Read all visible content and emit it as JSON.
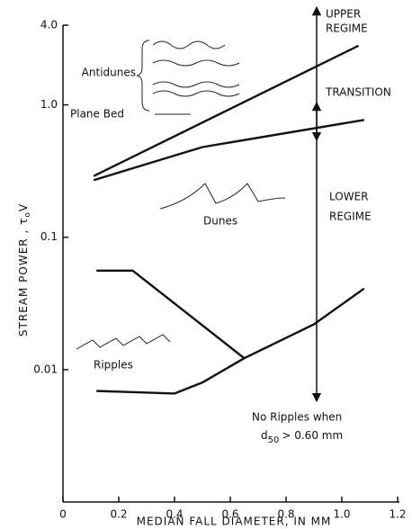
{
  "chart_data": {
    "type": "line",
    "xlabel": "MEDIAN FALL DIAMETER, IN MM",
    "ylabel": [
      "STREAM POWER , τ",
      "o",
      "V"
    ],
    "log_y": true,
    "xlim": [
      0,
      1.2
    ],
    "xticks": [
      0,
      0.2,
      0.4,
      0.6,
      0.8,
      {
        "value": 1.0,
        "label": "1.0"
      },
      1.2
    ],
    "ylim": [
      0.001,
      4
    ],
    "yticks": [
      0.01,
      0.1,
      {
        "value": 1.0,
        "label": "1.0"
      },
      {
        "value": 4.0,
        "label": "4.0"
      }
    ],
    "series": [
      {
        "color": "#111111",
        "x": [
          0.11,
          1.06
        ],
        "values": [
          0.29,
          2.8
        ]
      },
      {
        "color": "#111111",
        "x": [
          0.11,
          0.5,
          1.08
        ],
        "values": [
          0.27,
          0.48,
          0.77
        ]
      },
      {
        "color": "#111111",
        "x": [
          0.12,
          0.25,
          0.65
        ],
        "values": [
          0.056,
          0.056,
          0.0122
        ]
      },
      {
        "color": "#111111",
        "x": [
          0.12,
          0.4,
          0.5,
          0.65,
          0.9,
          1.08
        ],
        "values": [
          0.0069,
          0.0066,
          0.008,
          0.0122,
          0.022,
          0.041
        ]
      }
    ],
    "annotations": {
      "upper_regime": [
        "UPPER",
        "REGIME"
      ],
      "transition": "TRANSITION",
      "lower_regime": [
        "LOWER",
        "REGIME"
      ],
      "antidunes": "Antidunes",
      "plane_bed": "Plane Bed",
      "dunes": "Dunes",
      "ripples": "Ripples",
      "no_ripples": "No Ripples when",
      "d50": [
        "d",
        "50",
        "> 0.60 mm"
      ]
    }
  }
}
